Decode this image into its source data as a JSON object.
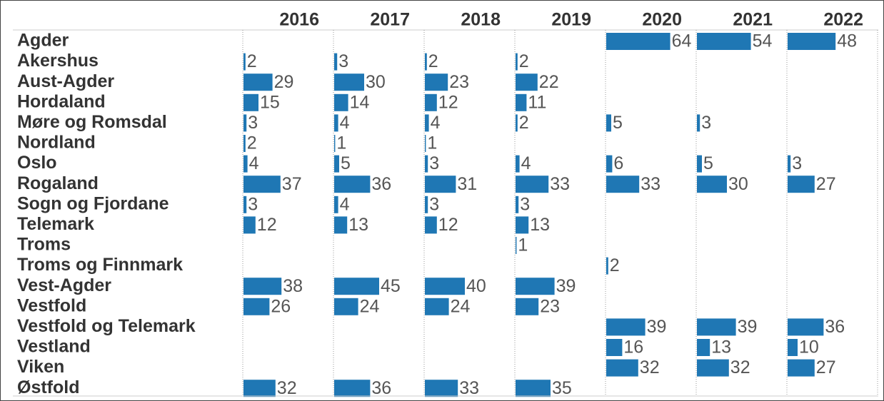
{
  "chart_data": {
    "type": "bar",
    "categories": [
      "Agder",
      "Akershus",
      "Aust-Agder",
      "Hordaland",
      "Møre og Romsdal",
      "Nordland",
      "Oslo",
      "Rogaland",
      "Sogn og Fjordane",
      "Telemark",
      "Troms",
      "Troms og Finnmark",
      "Vest-Agder",
      "Vestfold",
      "Vestfold og Telemark",
      "Vestland",
      "Viken",
      "Østfold"
    ],
    "color": "#1f77b4",
    "series": [
      {
        "name": "2016",
        "values": [
          null,
          2,
          29,
          15,
          3,
          2,
          4,
          37,
          3,
          12,
          null,
          null,
          38,
          26,
          null,
          null,
          null,
          32
        ]
      },
      {
        "name": "2017",
        "values": [
          null,
          3,
          30,
          14,
          4,
          1,
          5,
          36,
          4,
          13,
          null,
          null,
          45,
          24,
          null,
          null,
          null,
          36
        ]
      },
      {
        "name": "2018",
        "values": [
          null,
          2,
          23,
          12,
          4,
          1,
          3,
          31,
          3,
          12,
          null,
          null,
          40,
          24,
          null,
          null,
          null,
          33
        ]
      },
      {
        "name": "2019",
        "values": [
          null,
          2,
          22,
          11,
          2,
          null,
          4,
          33,
          3,
          13,
          1,
          null,
          39,
          23,
          null,
          null,
          null,
          35
        ]
      },
      {
        "name": "2020",
        "values": [
          64,
          null,
          null,
          null,
          5,
          null,
          6,
          33,
          null,
          null,
          null,
          2,
          null,
          null,
          39,
          16,
          32,
          null
        ]
      },
      {
        "name": "2021",
        "values": [
          54,
          null,
          null,
          null,
          3,
          null,
          5,
          30,
          null,
          null,
          null,
          null,
          null,
          null,
          39,
          13,
          32,
          null
        ]
      },
      {
        "name": "2022",
        "values": [
          48,
          null,
          null,
          null,
          null,
          null,
          3,
          27,
          null,
          null,
          null,
          null,
          null,
          null,
          36,
          10,
          27,
          null
        ]
      }
    ]
  }
}
